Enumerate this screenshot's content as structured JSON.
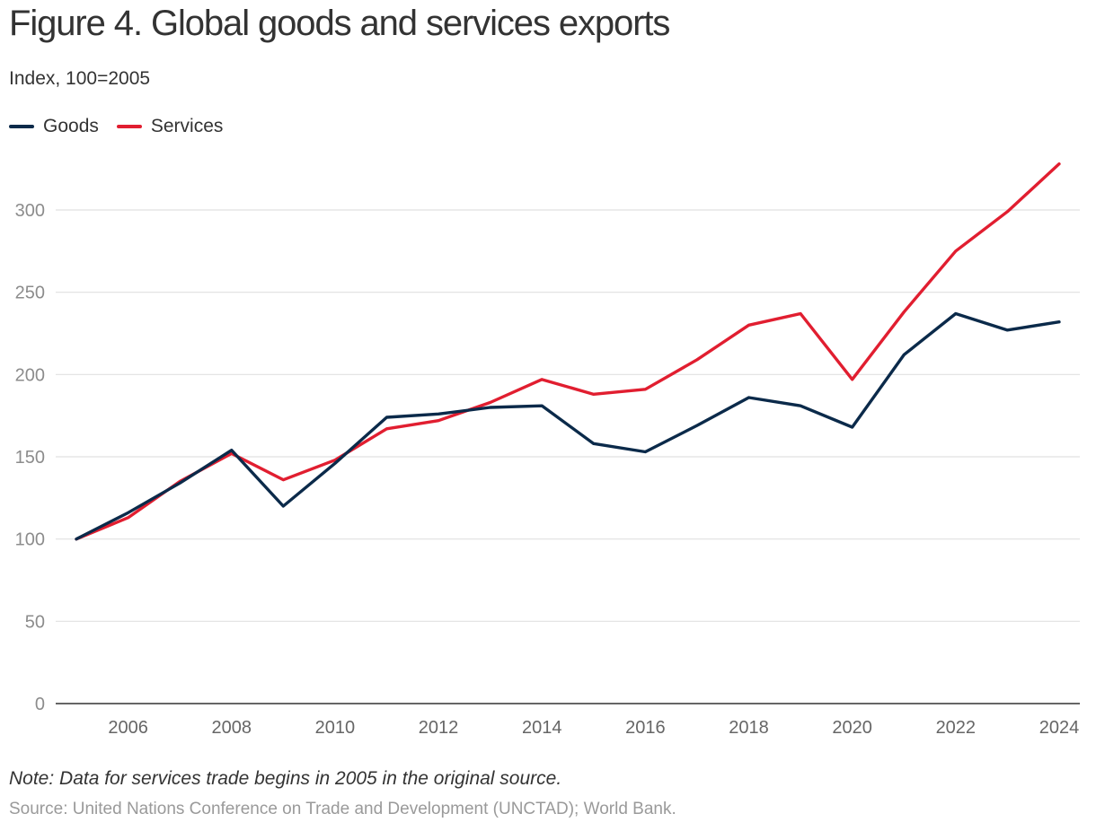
{
  "header": {
    "title": "Figure 4. Global goods and services exports",
    "subtitle": "Index, 100=2005"
  },
  "footer": {
    "note": "Note: Data for services trade begins in 2005 in the original source.",
    "source": "Source: United Nations Conference on Trade and Development (UNCTAD); World Bank."
  },
  "colors": {
    "goods": "#0b2a4a",
    "services": "#e11e30",
    "grid": "#e1e1e1",
    "axis": "#333333"
  },
  "chart_data": {
    "type": "line",
    "title": "Figure 4. Global goods and services exports",
    "subtitle": "Index, 100=2005",
    "xlabel": "",
    "ylabel": "",
    "x": [
      2005,
      2006,
      2007,
      2008,
      2009,
      2010,
      2011,
      2012,
      2013,
      2014,
      2015,
      2016,
      2017,
      2018,
      2019,
      2020,
      2021,
      2022,
      2023,
      2024
    ],
    "xticks": [
      "2006",
      "2008",
      "2010",
      "2012",
      "2014",
      "2016",
      "2018",
      "2020",
      "2022",
      "2024"
    ],
    "yticks": [
      "0",
      "50",
      "100",
      "150",
      "200",
      "250",
      "300"
    ],
    "xlim": [
      2004.6,
      2024.4
    ],
    "ylim": [
      0,
      330
    ],
    "grid": true,
    "legend_position": "top-left",
    "series": [
      {
        "name": "Goods",
        "color": "#0b2a4a",
        "values": [
          100,
          116,
          134,
          154,
          120,
          146,
          174,
          176,
          180,
          181,
          158,
          153,
          169,
          186,
          181,
          168,
          212,
          237,
          227,
          232
        ]
      },
      {
        "name": "Services",
        "color": "#e11e30",
        "values": [
          100,
          113,
          135,
          152,
          136,
          148,
          167,
          172,
          183,
          197,
          188,
          191,
          209,
          230,
          237,
          197,
          238,
          275,
          299,
          328
        ]
      }
    ]
  }
}
